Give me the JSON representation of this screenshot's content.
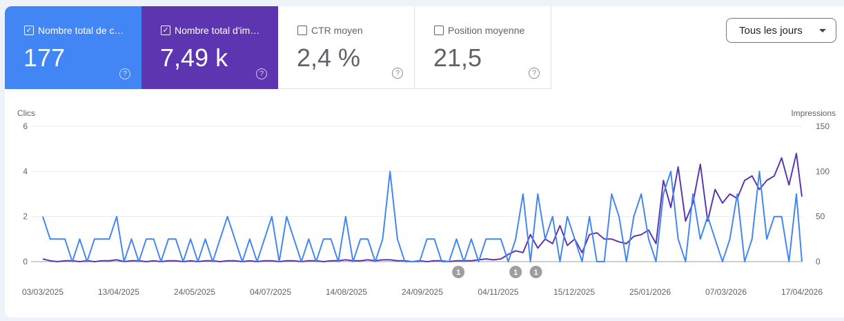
{
  "metrics": [
    {
      "label": "Nombre total de c…",
      "value": "177",
      "checked": true,
      "color": "#4285f4"
    },
    {
      "label": "Nombre total d'im…",
      "value": "7,49 k",
      "checked": true,
      "color": "#5e35b1"
    },
    {
      "label": "CTR moyen",
      "value": "2,4 %",
      "checked": false
    },
    {
      "label": "Position moyenne",
      "value": "21,5",
      "checked": false
    }
  ],
  "help_glyph": "?",
  "check_glyph": "✓",
  "range_dropdown": {
    "label": "Tous les jours"
  },
  "chart_data": {
    "type": "line",
    "ylabel_left": "Clics",
    "ylabel_right": "Impressions",
    "ylim_left": [
      0,
      6
    ],
    "ylim_right": [
      0,
      150
    ],
    "yticks_left": [
      "0",
      "2",
      "4",
      "6"
    ],
    "yticks_right": [
      "0",
      "50",
      "100",
      "150"
    ],
    "xticks": [
      "03/03/2025",
      "13/04/2025",
      "24/05/2025",
      "04/07/2025",
      "14/08/2025",
      "24/09/2025",
      "04/11/2025",
      "15/12/2025",
      "25/01/2026",
      "07/03/2026",
      "17/04/2026"
    ],
    "xlim": [
      "2025-03-03",
      "2026-04-18"
    ],
    "grid": true,
    "series": [
      {
        "name": "Clics",
        "color": "#4285f4",
        "axis": "left"
      },
      {
        "name": "Impressions",
        "color": "#5e35b1",
        "axis": "right"
      }
    ],
    "points": [
      [
        "2025-03-03",
        2,
        3
      ],
      [
        "2025-03-07",
        1,
        1
      ],
      [
        "2025-03-11",
        1,
        0
      ],
      [
        "2025-03-15",
        1,
        1
      ],
      [
        "2025-03-19",
        0,
        1
      ],
      [
        "2025-03-23",
        1,
        0
      ],
      [
        "2025-03-27",
        0,
        1
      ],
      [
        "2025-03-31",
        1,
        0
      ],
      [
        "2025-04-04",
        1,
        1
      ],
      [
        "2025-04-08",
        1,
        1
      ],
      [
        "2025-04-12",
        2,
        2
      ],
      [
        "2025-04-16",
        0,
        0
      ],
      [
        "2025-04-20",
        1,
        1
      ],
      [
        "2025-04-24",
        0,
        1
      ],
      [
        "2025-04-28",
        1,
        0
      ],
      [
        "2025-05-02",
        1,
        1
      ],
      [
        "2025-05-06",
        0,
        0
      ],
      [
        "2025-05-10",
        1,
        1
      ],
      [
        "2025-05-14",
        1,
        1
      ],
      [
        "2025-05-18",
        0,
        0
      ],
      [
        "2025-05-22",
        1,
        1
      ],
      [
        "2025-05-26",
        0,
        0
      ],
      [
        "2025-05-30",
        1,
        1
      ],
      [
        "2025-06-03",
        0,
        1
      ],
      [
        "2025-06-07",
        1,
        0
      ],
      [
        "2025-06-11",
        2,
        1
      ],
      [
        "2025-06-15",
        1,
        1
      ],
      [
        "2025-06-19",
        0,
        0
      ],
      [
        "2025-06-23",
        1,
        1
      ],
      [
        "2025-06-27",
        0,
        0
      ],
      [
        "2025-07-01",
        1,
        1
      ],
      [
        "2025-07-05",
        2,
        1
      ],
      [
        "2025-07-09",
        0,
        0
      ],
      [
        "2025-07-13",
        2,
        1
      ],
      [
        "2025-07-17",
        1,
        1
      ],
      [
        "2025-07-21",
        0,
        0
      ],
      [
        "2025-07-25",
        1,
        1
      ],
      [
        "2025-07-29",
        0,
        1
      ],
      [
        "2025-08-02",
        1,
        0
      ],
      [
        "2025-08-06",
        1,
        1
      ],
      [
        "2025-08-10",
        0,
        1
      ],
      [
        "2025-08-14",
        2,
        2
      ],
      [
        "2025-08-18",
        0,
        1
      ],
      [
        "2025-08-22",
        1,
        1
      ],
      [
        "2025-08-26",
        1,
        2
      ],
      [
        "2025-08-30",
        0,
        1
      ],
      [
        "2025-09-03",
        1,
        2
      ],
      [
        "2025-09-07",
        4,
        2
      ],
      [
        "2025-09-11",
        1,
        1
      ],
      [
        "2025-09-15",
        0,
        1
      ],
      [
        "2025-09-19",
        0,
        0
      ],
      [
        "2025-09-23",
        0,
        1
      ],
      [
        "2025-09-27",
        1,
        0
      ],
      [
        "2025-10-01",
        1,
        1
      ],
      [
        "2025-10-05",
        0,
        1
      ],
      [
        "2025-10-09",
        0,
        0
      ],
      [
        "2025-10-13",
        1,
        1
      ],
      [
        "2025-10-17",
        0,
        1
      ],
      [
        "2025-10-21",
        1,
        1
      ],
      [
        "2025-10-25",
        0,
        2
      ],
      [
        "2025-10-29",
        1,
        3
      ],
      [
        "2025-11-02",
        1,
        2
      ],
      [
        "2025-11-06",
        1,
        3
      ],
      [
        "2025-11-10",
        0,
        8
      ],
      [
        "2025-11-14",
        1,
        12
      ],
      [
        "2025-11-18",
        3,
        10
      ],
      [
        "2025-11-22",
        0,
        30
      ],
      [
        "2025-11-26",
        3,
        15
      ],
      [
        "2025-11-30",
        1,
        25
      ],
      [
        "2025-12-04",
        2,
        20
      ],
      [
        "2025-12-08",
        0,
        40
      ],
      [
        "2025-12-12",
        2,
        18
      ],
      [
        "2025-12-16",
        1,
        25
      ],
      [
        "2025-12-20",
        0,
        10
      ],
      [
        "2025-12-24",
        2,
        30
      ],
      [
        "2025-12-28",
        0,
        32
      ],
      [
        "2026-01-01",
        0,
        25
      ],
      [
        "2026-01-05",
        3,
        25
      ],
      [
        "2026-01-09",
        2,
        22
      ],
      [
        "2026-01-13",
        0,
        20
      ],
      [
        "2026-01-17",
        2,
        28
      ],
      [
        "2026-01-21",
        3,
        30
      ],
      [
        "2026-01-25",
        1,
        35
      ],
      [
        "2026-01-29",
        0,
        20
      ],
      [
        "2026-02-02",
        3,
        90
      ],
      [
        "2026-02-06",
        4,
        60
      ],
      [
        "2026-02-10",
        1,
        105
      ],
      [
        "2026-02-14",
        0,
        45
      ],
      [
        "2026-02-18",
        3,
        65
      ],
      [
        "2026-02-22",
        1,
        108
      ],
      [
        "2026-02-26",
        2,
        45
      ],
      [
        "2026-03-02",
        1,
        80
      ],
      [
        "2026-03-06",
        0,
        65
      ],
      [
        "2026-03-10",
        1,
        75
      ],
      [
        "2026-03-14",
        3,
        70
      ],
      [
        "2026-03-18",
        0,
        90
      ],
      [
        "2026-03-22",
        1,
        95
      ],
      [
        "2026-03-26",
        4,
        80
      ],
      [
        "2026-03-30",
        1,
        90
      ],
      [
        "2026-04-03",
        2,
        95
      ],
      [
        "2026-04-07",
        2,
        115
      ],
      [
        "2026-04-11",
        0,
        85
      ],
      [
        "2026-04-15",
        3,
        120
      ],
      [
        "2026-04-18",
        0,
        72
      ]
    ],
    "annotations": [
      {
        "date": "2025-10-14",
        "label": "1"
      },
      {
        "date": "2025-11-14",
        "label": "1"
      },
      {
        "date": "2025-11-25",
        "label": "1"
      }
    ]
  }
}
